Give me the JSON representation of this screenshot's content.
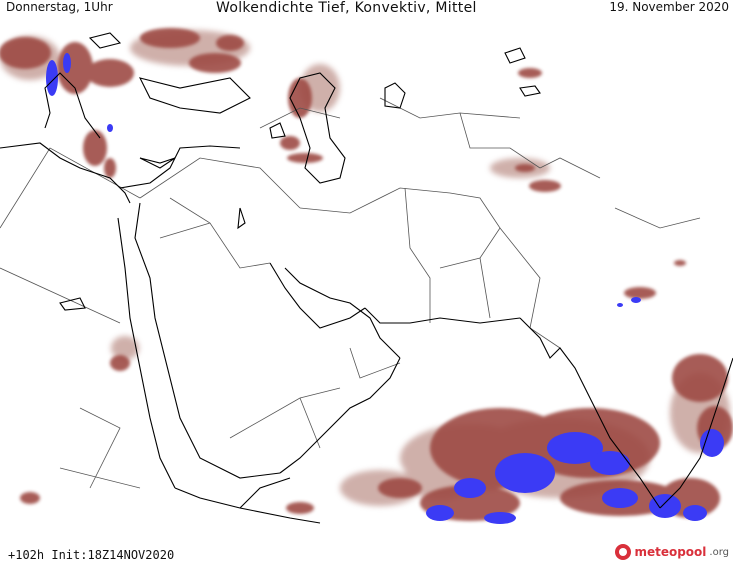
{
  "header": {
    "left": "Donnerstag, 1Uhr",
    "center": "Wolkendichte  Tief, Konvektiv, Mittel",
    "right": "19. November 2020"
  },
  "footer": {
    "run_info": "+102h  Init:18Z14NOV2020",
    "logo_name": "meteopool",
    "logo_suffix": ".org"
  },
  "colors": {
    "cloud": "#9e4b45",
    "cloud_light": "#c49a92",
    "cloud_dense": "#3b3bf5",
    "coastline": "#000000",
    "border": "#555555"
  },
  "icons": {
    "logo": "meteopool-logo-icon"
  }
}
